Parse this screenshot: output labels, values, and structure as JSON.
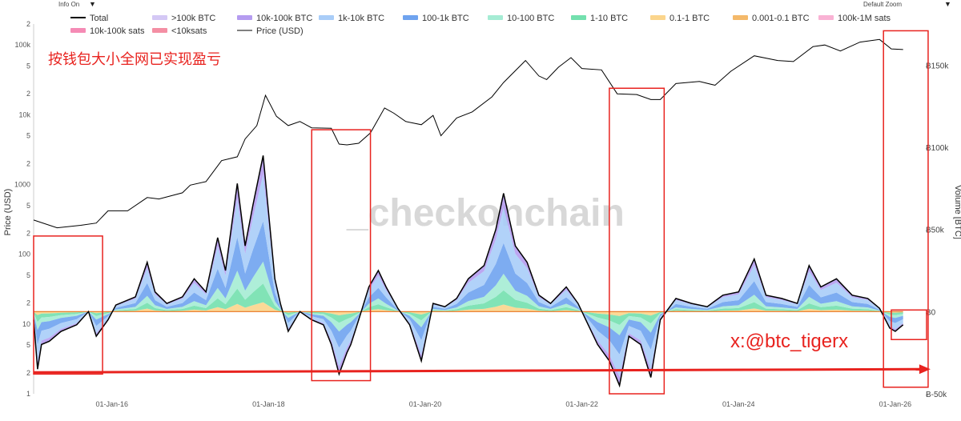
{
  "toolbar": {
    "info_label": "Info On",
    "zoom_label": "Default Zoom",
    "caret": "▼"
  },
  "annotations": {
    "title_cn": "按钱包大小全网已实现盈亏",
    "handle": "x:@btc_tigerx",
    "watermark": "_checkonchain"
  },
  "colors": {
    "annotation_red": "#e8231f",
    "price_line": "#000000",
    "total_line": "#000000",
    "zero_line": "#e8731f"
  },
  "chart_data": {
    "type": "area",
    "x_axis": {
      "ticks": [
        "01-Jan-16",
        "01-Jan-18",
        "01-Jan-20",
        "01-Jan-22",
        "01-Jan-24",
        "01-Jan-26"
      ],
      "range": [
        2015.0,
        2026.4
      ]
    },
    "y_left": {
      "label": "Price (USD)",
      "scale": "log",
      "range": [
        1,
        200000
      ],
      "ticks": [
        {
          "v": 1,
          "t": "1"
        },
        {
          "v": 2,
          "t": "2"
        },
        {
          "v": 5,
          "t": "5"
        },
        {
          "v": 10,
          "t": "10"
        },
        {
          "v": 20,
          "t": "2"
        },
        {
          "v": 50,
          "t": "5"
        },
        {
          "v": 100,
          "t": "100"
        },
        {
          "v": 200,
          "t": "2"
        },
        {
          "v": 500,
          "t": "5"
        },
        {
          "v": 1000,
          "t": "1000"
        },
        {
          "v": 2000,
          "t": "2"
        },
        {
          "v": 5000,
          "t": "5"
        },
        {
          "v": 10000,
          "t": "10k"
        },
        {
          "v": 20000,
          "t": "2"
        },
        {
          "v": 50000,
          "t": "5"
        },
        {
          "v": 100000,
          "t": "100k"
        },
        {
          "v": 200000,
          "t": "2"
        }
      ]
    },
    "y_right": {
      "label": "Volume [BTC]",
      "range": [
        -50000,
        175000
      ],
      "ticks": [
        {
          "v": -50000,
          "t": "Ƀ-50k"
        },
        {
          "v": 0,
          "t": "Ƀ0"
        },
        {
          "v": 50000,
          "t": "Ƀ50k"
        },
        {
          "v": 100000,
          "t": "Ƀ100k"
        },
        {
          "v": 150000,
          "t": "Ƀ150k"
        }
      ]
    },
    "legend": [
      {
        "name": "Total",
        "type": "line",
        "color": "#000000"
      },
      {
        "name": ">100k BTC",
        "type": "area",
        "color": "#d4c8f5"
      },
      {
        "name": "10k-100k BTC",
        "type": "area",
        "color": "#b59cf0"
      },
      {
        "name": "1k-10k BTC",
        "type": "area",
        "color": "#a9cdf8"
      },
      {
        "name": "100-1k BTC",
        "type": "area",
        "color": "#6fa3ef"
      },
      {
        "name": "10-100 BTC",
        "type": "area",
        "color": "#a5ecd4"
      },
      {
        "name": "1-10 BTC",
        "type": "area",
        "color": "#73e0ae"
      },
      {
        "name": "0.1-1 BTC",
        "type": "area",
        "color": "#fbd58c"
      },
      {
        "name": "0.001-0.1 BTC",
        "type": "area",
        "color": "#f4b96a"
      },
      {
        "name": "100k-1M sats",
        "type": "area",
        "color": "#f9b2d4"
      },
      {
        "name": "10k-100k sats",
        "type": "area",
        "color": "#f58bb5"
      },
      {
        "name": "<10ksats",
        "type": "area",
        "color": "#f48fa4"
      },
      {
        "name": "Price (USD)",
        "type": "line",
        "color": "#000000"
      }
    ],
    "price": [
      [
        2015.0,
        310
      ],
      [
        2015.3,
        240
      ],
      [
        2015.6,
        260
      ],
      [
        2015.8,
        280
      ],
      [
        2015.95,
        420
      ],
      [
        2016.2,
        420
      ],
      [
        2016.45,
        650
      ],
      [
        2016.6,
        620
      ],
      [
        2016.9,
        760
      ],
      [
        2017.0,
        980
      ],
      [
        2017.2,
        1100
      ],
      [
        2017.4,
        2200
      ],
      [
        2017.6,
        2500
      ],
      [
        2017.7,
        4500
      ],
      [
        2017.85,
        7000
      ],
      [
        2017.96,
        19000
      ],
      [
        2018.1,
        9500
      ],
      [
        2018.25,
        7000
      ],
      [
        2018.4,
        8000
      ],
      [
        2018.55,
        6500
      ],
      [
        2018.8,
        6400
      ],
      [
        2018.9,
        3800
      ],
      [
        2019.0,
        3700
      ],
      [
        2019.15,
        3900
      ],
      [
        2019.3,
        5500
      ],
      [
        2019.48,
        12500
      ],
      [
        2019.6,
        10500
      ],
      [
        2019.75,
        8000
      ],
      [
        2019.95,
        7200
      ],
      [
        2020.1,
        9800
      ],
      [
        2020.2,
        5000
      ],
      [
        2020.4,
        9000
      ],
      [
        2020.6,
        11000
      ],
      [
        2020.85,
        18000
      ],
      [
        2021.0,
        29000
      ],
      [
        2021.28,
        60000
      ],
      [
        2021.45,
        36000
      ],
      [
        2021.55,
        32000
      ],
      [
        2021.7,
        48000
      ],
      [
        2021.86,
        66000
      ],
      [
        2022.0,
        46000
      ],
      [
        2022.25,
        44000
      ],
      [
        2022.45,
        20000
      ],
      [
        2022.7,
        19500
      ],
      [
        2022.88,
        16500
      ],
      [
        2023.0,
        16500
      ],
      [
        2023.2,
        28000
      ],
      [
        2023.5,
        30000
      ],
      [
        2023.7,
        26500
      ],
      [
        2023.9,
        42000
      ],
      [
        2024.2,
        70000
      ],
      [
        2024.5,
        60000
      ],
      [
        2024.7,
        58000
      ],
      [
        2024.95,
        95000
      ],
      [
        2025.1,
        100000
      ],
      [
        2025.3,
        82000
      ],
      [
        2025.55,
        110000
      ],
      [
        2025.8,
        120000
      ],
      [
        2025.95,
        88000
      ],
      [
        2026.1,
        86000
      ]
    ],
    "net_total": [
      [
        2015.0,
        -5000
      ],
      [
        2015.05,
        -35000
      ],
      [
        2015.1,
        -20000
      ],
      [
        2015.2,
        -18000
      ],
      [
        2015.35,
        -12000
      ],
      [
        2015.55,
        -8000
      ],
      [
        2015.7,
        0
      ],
      [
        2015.8,
        -15000
      ],
      [
        2015.95,
        -5000
      ],
      [
        2016.05,
        4000
      ],
      [
        2016.3,
        9000
      ],
      [
        2016.45,
        30000
      ],
      [
        2016.55,
        12000
      ],
      [
        2016.7,
        5000
      ],
      [
        2016.9,
        9000
      ],
      [
        2017.05,
        20000
      ],
      [
        2017.2,
        12000
      ],
      [
        2017.35,
        45000
      ],
      [
        2017.45,
        25000
      ],
      [
        2017.6,
        78000
      ],
      [
        2017.7,
        40000
      ],
      [
        2017.8,
        65000
      ],
      [
        2017.93,
        95000
      ],
      [
        2018.0,
        60000
      ],
      [
        2018.08,
        20000
      ],
      [
        2018.15,
        5000
      ],
      [
        2018.25,
        -12000
      ],
      [
        2018.4,
        0
      ],
      [
        2018.55,
        -5000
      ],
      [
        2018.7,
        -8000
      ],
      [
        2018.8,
        -20000
      ],
      [
        2018.9,
        -38000
      ],
      [
        2019.0,
        -25000
      ],
      [
        2019.05,
        -20000
      ],
      [
        2019.15,
        -5000
      ],
      [
        2019.28,
        15000
      ],
      [
        2019.4,
        25000
      ],
      [
        2019.5,
        15000
      ],
      [
        2019.65,
        2000
      ],
      [
        2019.8,
        -8000
      ],
      [
        2019.95,
        -30000
      ],
      [
        2020.1,
        5000
      ],
      [
        2020.25,
        3000
      ],
      [
        2020.4,
        8000
      ],
      [
        2020.55,
        20000
      ],
      [
        2020.75,
        28000
      ],
      [
        2020.9,
        50000
      ],
      [
        2021.0,
        72000
      ],
      [
        2021.15,
        40000
      ],
      [
        2021.3,
        30000
      ],
      [
        2021.45,
        10000
      ],
      [
        2021.6,
        5000
      ],
      [
        2021.8,
        15000
      ],
      [
        2021.95,
        5000
      ],
      [
        2022.05,
        -5000
      ],
      [
        2022.2,
        -20000
      ],
      [
        2022.35,
        -30000
      ],
      [
        2022.48,
        -45000
      ],
      [
        2022.6,
        -15000
      ],
      [
        2022.75,
        -20000
      ],
      [
        2022.88,
        -40000
      ],
      [
        2023.0,
        -5000
      ],
      [
        2023.2,
        8000
      ],
      [
        2023.4,
        5000
      ],
      [
        2023.6,
        3000
      ],
      [
        2023.8,
        10000
      ],
      [
        2024.0,
        12000
      ],
      [
        2024.2,
        32000
      ],
      [
        2024.35,
        10000
      ],
      [
        2024.55,
        8000
      ],
      [
        2024.75,
        5000
      ],
      [
        2024.9,
        28000
      ],
      [
        2025.05,
        15000
      ],
      [
        2025.25,
        20000
      ],
      [
        2025.45,
        10000
      ],
      [
        2025.65,
        8000
      ],
      [
        2025.8,
        2000
      ],
      [
        2025.93,
        -10000
      ],
      [
        2026.0,
        -12000
      ],
      [
        2026.1,
        -8000
      ]
    ],
    "red_boxes": [
      {
        "x0": 2015.0,
        "x1": 2015.88,
        "y0": -38000,
        "y1": 46000
      },
      {
        "x0": 2018.55,
        "x1": 2019.3,
        "v0": 2600,
        "v1": 6100,
        "y_low": -42000
      },
      {
        "x0": 2022.35,
        "x1": 2023.05,
        "v0": 17500,
        "v1": 24000,
        "y_low": -50000
      },
      {
        "x0": 2025.85,
        "x1": 2026.42,
        "v0": 160000,
        "y_low": -46000
      },
      {
        "x0": 2025.95,
        "x1": 2026.4,
        "y0": -17000,
        "y1": 1000
      }
    ],
    "arrow": {
      "x0": 2015.0,
      "y0": -37000,
      "x1": 2026.45,
      "y1": -35000
    }
  }
}
